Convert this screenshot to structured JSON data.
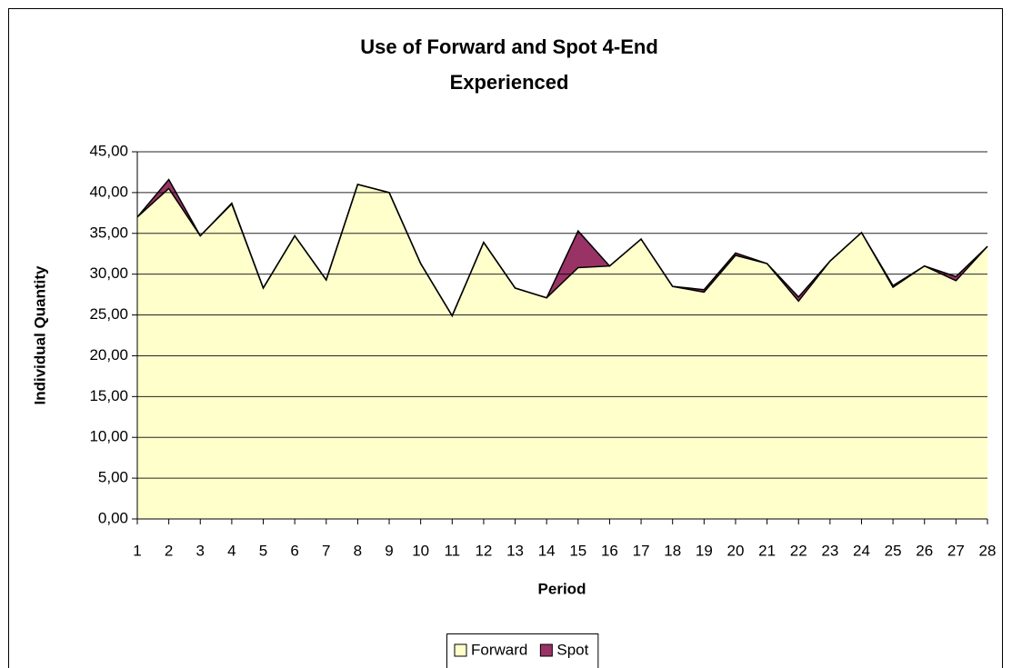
{
  "chart_data": {
    "type": "stacked_area",
    "title": [
      "Use of Forward and Spot 4-End",
      "Experienced"
    ],
    "xlabel": "Period",
    "ylabel": "Individual Quantity",
    "categories": [
      "1",
      "2",
      "3",
      "4",
      "5",
      "6",
      "7",
      "8",
      "9",
      "10",
      "11",
      "12",
      "13",
      "14",
      "15",
      "16",
      "17",
      "18",
      "19",
      "20",
      "21",
      "22",
      "23",
      "24",
      "25",
      "26",
      "27",
      "28"
    ],
    "series": [
      {
        "name": "Forward",
        "color": "#ffffcc",
        "values": [
          37.0,
          40.5,
          34.7,
          38.6,
          28.3,
          34.7,
          29.3,
          41.0,
          40.0,
          31.3,
          24.9,
          33.9,
          28.3,
          27.1,
          30.8,
          31.0,
          34.3,
          28.5,
          27.8,
          32.3,
          31.3,
          26.7,
          31.6,
          35.1,
          28.4,
          31.0,
          29.2,
          33.4
        ]
      },
      {
        "name": "Spot",
        "color": "#993366",
        "values": [
          0,
          1.1,
          0,
          0.1,
          0,
          0,
          0,
          0,
          0,
          0,
          0,
          0,
          0,
          0,
          4.5,
          0,
          0,
          0,
          0.3,
          0.3,
          0,
          0.5,
          0,
          0,
          0.2,
          0,
          0.5,
          0
        ]
      }
    ],
    "ylim": [
      0,
      45
    ],
    "yticks": [
      {
        "value": 0,
        "label": "0,00"
      },
      {
        "value": 5,
        "label": "5,00"
      },
      {
        "value": 10,
        "label": "10,00"
      },
      {
        "value": 15,
        "label": "15,00"
      },
      {
        "value": 20,
        "label": "20,00"
      },
      {
        "value": 25,
        "label": "25,00"
      },
      {
        "value": 30,
        "label": "30,00"
      },
      {
        "value": 35,
        "label": "35,00"
      },
      {
        "value": 40,
        "label": "40,00"
      },
      {
        "value": 45,
        "label": "45,00"
      }
    ],
    "grid": true,
    "legend": "bottom"
  }
}
